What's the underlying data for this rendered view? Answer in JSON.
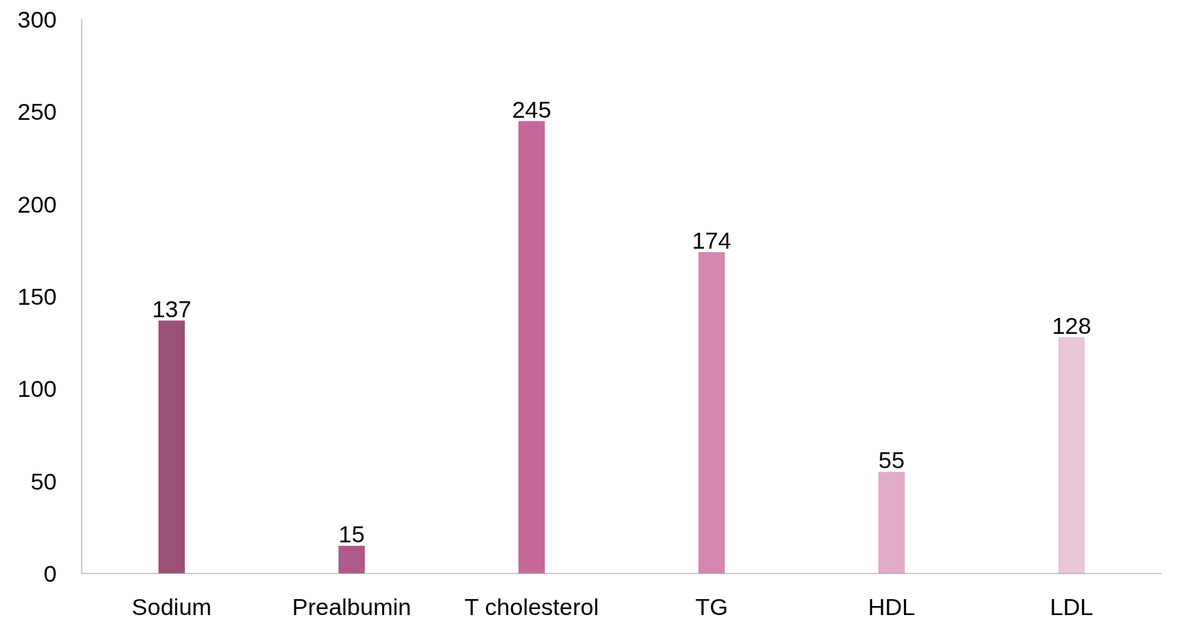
{
  "chart_data": {
    "type": "bar",
    "categories": [
      "Sodium",
      "Prealbumin",
      "T cholesterol",
      "TG",
      "HDL",
      "LDL"
    ],
    "values": [
      137,
      15,
      245,
      174,
      55,
      128
    ],
    "colors": [
      "#9b5077",
      "#b05a8a",
      "#c6679a",
      "#d587b0",
      "#e1aac7",
      "#eac6d7"
    ],
    "ylim": [
      0,
      300
    ],
    "yticks": [
      0,
      50,
      100,
      150,
      200,
      250,
      300
    ],
    "grid": false,
    "data_labels": true
  }
}
